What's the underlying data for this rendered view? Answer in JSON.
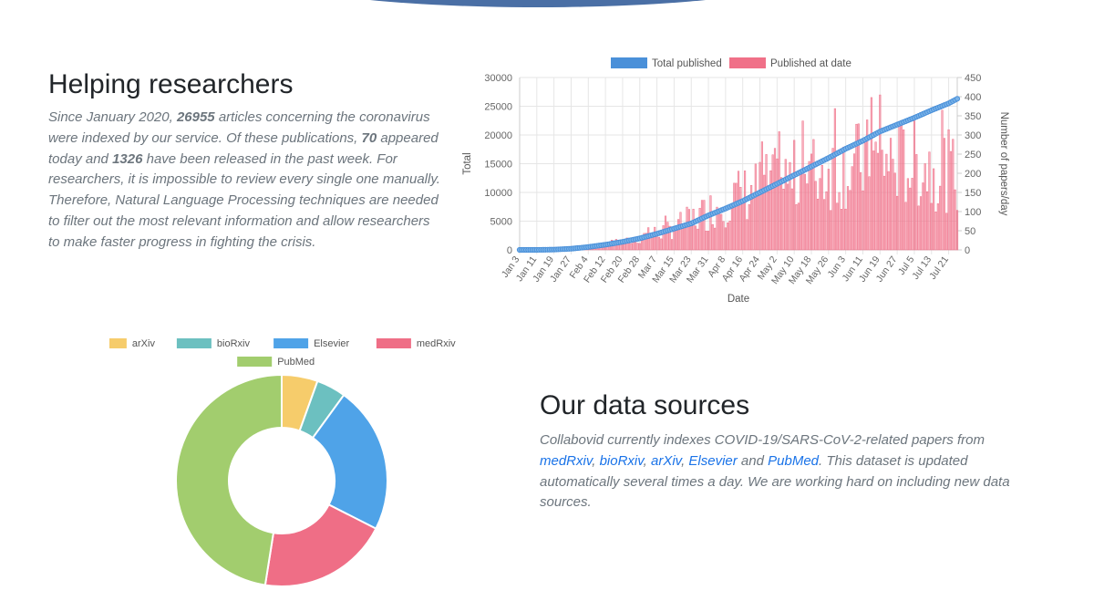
{
  "help": {
    "title": "Helping researchers",
    "p1": "Since January 2020, ",
    "total_articles": "26955",
    "p2": " articles concerning the coronavirus were indexed by our service. Of these publications, ",
    "today_count": "70",
    "p3": " appeared today and ",
    "week_count": "1326",
    "p4": " have been released in the past week. For researchers, it is impossible to review every single one manually. Therefore, Natural Language Processing techniques are needed to filter out the most relevant information and allow researchers to make faster progress in fighting the crisis."
  },
  "sources": {
    "title": "Our data sources",
    "p1": "Collabovid currently indexes COVID-19/SARS-CoV-2-related papers from ",
    "medrxiv": "medRxiv",
    "sep1": ", ",
    "biorxiv": "bioRxiv",
    "sep2": ", ",
    "arxiv": "arXiv",
    "sep3": ", ",
    "elsevier": "Elsevier",
    "and": " and ",
    "pubmed": "PubMed",
    "p2": ". This dataset is updated automatically several times a day. We are working hard on including new data sources."
  },
  "chart_data": [
    {
      "type": "bar",
      "title": "",
      "xlabel": "Date",
      "ylabel": "Total",
      "ylabel_right": "Number of papers/day",
      "ylim": [
        0,
        30000
      ],
      "ylim_right": [
        0,
        450
      ],
      "yticks": [
        "0",
        "5000",
        "10000",
        "15000",
        "20000",
        "25000",
        "30000"
      ],
      "yticks_right": [
        "0",
        "50",
        "100",
        "150",
        "200",
        "250",
        "300",
        "350",
        "400",
        "450"
      ],
      "xticks": [
        "Jan 3",
        "Jan 11",
        "Jan 19",
        "Jan 27",
        "Feb 4",
        "Feb 12",
        "Feb 20",
        "Feb 28",
        "Mar 7",
        "Mar 15",
        "Mar 23",
        "Mar 31",
        "Apr 8",
        "Apr 16",
        "Apr 24",
        "May 2",
        "May 10",
        "May 18",
        "May 26",
        "Jun 3",
        "Jun 11",
        "Jun 19",
        "Jun 27",
        "Jul 5",
        "Jul 13",
        "Jul 21"
      ],
      "series": [
        {
          "name": "Total published",
          "type": "line",
          "axis": "left",
          "color": "#4a90d9",
          "anchors": [
            [
              0,
              0
            ],
            [
              8,
              0
            ],
            [
              16,
              50
            ],
            [
              24,
              200
            ],
            [
              32,
              500
            ],
            [
              40,
              900
            ],
            [
              48,
              1400
            ],
            [
              56,
              2000
            ],
            [
              64,
              2800
            ],
            [
              72,
              3700
            ],
            [
              80,
              4600
            ],
            [
              88,
              6000
            ],
            [
              96,
              7200
            ],
            [
              104,
              8500
            ],
            [
              112,
              10000
            ],
            [
              120,
              11500
            ],
            [
              128,
              13000
            ],
            [
              136,
              14500
            ],
            [
              144,
              16000
            ],
            [
              152,
              17600
            ],
            [
              160,
              19000
            ],
            [
              168,
              20600
            ],
            [
              176,
              21800
            ],
            [
              184,
              23000
            ],
            [
              192,
              24300
            ],
            [
              200,
              25500
            ],
            [
              204,
              26300
            ]
          ]
        },
        {
          "name": "Published at date",
          "type": "bar",
          "axis": "right",
          "color": "#f07088",
          "anchors": [
            [
              0,
              0
            ],
            [
              20,
              3
            ],
            [
              35,
              10
            ],
            [
              50,
              25
            ],
            [
              60,
              40
            ],
            [
              70,
              55
            ],
            [
              80,
              80
            ],
            [
              90,
              110
            ],
            [
              100,
              140
            ],
            [
              110,
              160
            ],
            [
              120,
              180
            ],
            [
              130,
              195
            ],
            [
              140,
              210
            ],
            [
              150,
              220
            ],
            [
              160,
              230
            ],
            [
              170,
              240
            ],
            [
              180,
              230
            ],
            [
              190,
              225
            ],
            [
              200,
              210
            ],
            [
              204,
              200
            ]
          ]
        }
      ]
    },
    {
      "type": "pie",
      "categories": [
        "arXiv",
        "bioRxiv",
        "Elsevier",
        "medRxiv",
        "PubMed"
      ],
      "values": [
        5.5,
        4.5,
        22.5,
        20,
        47.5
      ],
      "colors": [
        "#f6cc6b",
        "#6cc0c0",
        "#4fa3e8",
        "#ef6e86",
        "#a2cd6e"
      ]
    }
  ]
}
